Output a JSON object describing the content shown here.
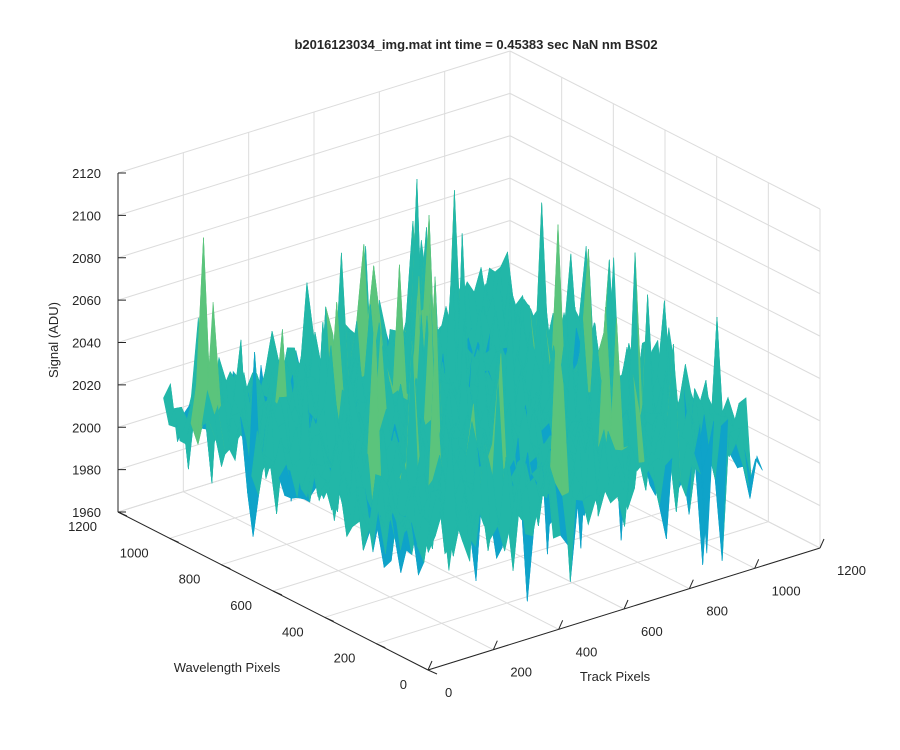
{
  "chart_data": {
    "type": "surface",
    "title": "b2016123034_img.mat int time = 0.45383 sec  NaN nm BS02",
    "xlabel": "Track Pixels",
    "ylabel": "Wavelength Pixels",
    "zlabel": "Signal (ADU)",
    "xlim": [
      0,
      1200
    ],
    "ylim": [
      0,
      1200
    ],
    "zlim": [
      1960,
      2120
    ],
    "x_ticks": [
      0,
      200,
      400,
      600,
      800,
      1000,
      1200
    ],
    "y_ticks": [
      0,
      200,
      400,
      600,
      800,
      1000,
      1200
    ],
    "z_ticks": [
      1960,
      1980,
      2000,
      2020,
      2040,
      2060,
      2080,
      2100,
      2120
    ],
    "data_extent": {
      "x": [
        0,
        1024
      ],
      "y": [
        0,
        1024
      ]
    },
    "signal_summary": {
      "mean": 2020,
      "min_approx": 1965,
      "max_approx": 2108
    },
    "colormap": [
      "#1f78c8",
      "#0fa3c9",
      "#22b7a8",
      "#5bc47c",
      "#a6ca52",
      "#d6c94a"
    ],
    "grid": true
  }
}
